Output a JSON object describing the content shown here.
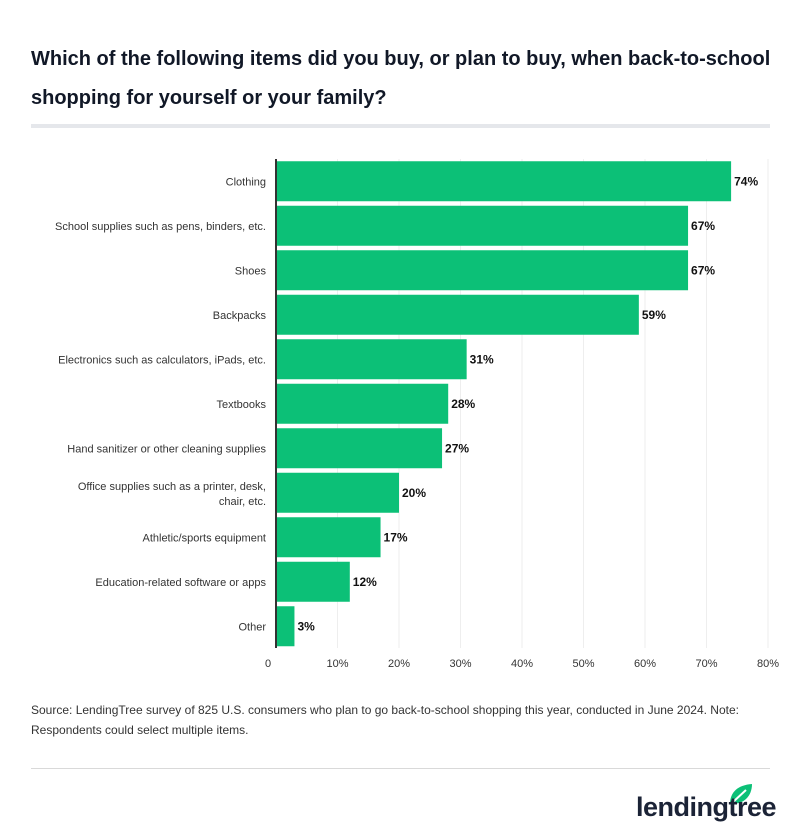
{
  "chart_data": {
    "type": "bar",
    "orientation": "horizontal",
    "title": "Which of the following items did you buy, or plan to buy, when back-to-school shopping for yourself or your family?",
    "categories": [
      "Clothing",
      "School supplies such as pens, binders, etc.",
      "Shoes",
      "Backpacks",
      "Electronics such as calculators, iPads, etc.",
      "Textbooks",
      "Hand sanitizer or other cleaning supplies",
      "Office supplies such as a printer, desk, chair, etc.",
      "Athletic/sports equipment",
      "Education-related software or apps",
      "Other"
    ],
    "values": [
      74,
      67,
      67,
      59,
      31,
      28,
      27,
      20,
      17,
      12,
      3
    ],
    "data_labels": [
      "74%",
      "67%",
      "67%",
      "59%",
      "31%",
      "28%",
      "27%",
      "20%",
      "17%",
      "12%",
      "3%"
    ],
    "xlim": [
      0,
      80
    ],
    "xticks": [
      0,
      10,
      20,
      30,
      40,
      50,
      60,
      70,
      80
    ],
    "xtick_labels": [
      "0",
      "10%",
      "20%",
      "30%",
      "40%",
      "50%",
      "60%",
      "70%",
      "80%"
    ],
    "xlabel": "",
    "ylabel": "",
    "grid": true,
    "bar_color": "#0cc077"
  },
  "source": "Source: LendingTree survey of 825 U.S. consumers who plan to go back-to-school shopping this year, conducted in June 2024. Note: Respondents could select multiple items.",
  "logo": {
    "text": "lendingtree",
    "leaf_color": "#0cc077"
  }
}
